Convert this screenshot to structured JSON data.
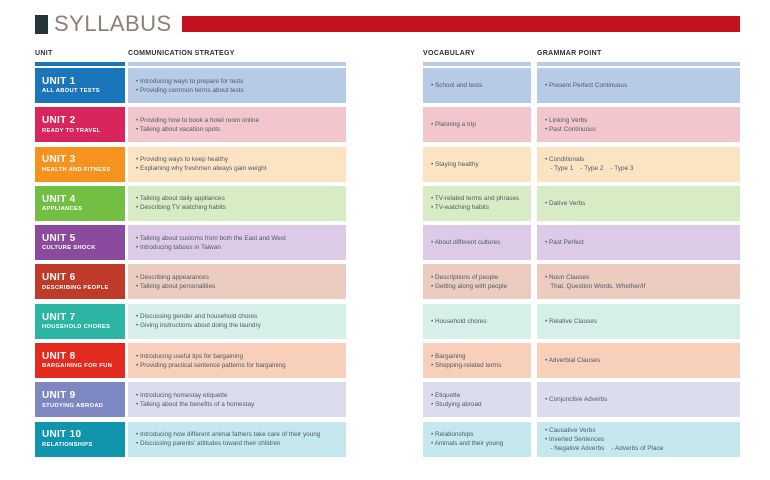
{
  "header": {
    "title": "SYLLABUS",
    "title_color": "#8c8077",
    "square_color": "#243538",
    "rule_color": "#c5121f"
  },
  "columns": {
    "unit": "UNIT",
    "comm": "COMMUNICATION STRATEGY",
    "vocab": "VOCABULARY",
    "grammar": "GRAMMAR POINT",
    "unit_underline_color": "#1b75bb",
    "underline_color": "#b9cbe5"
  },
  "units": [
    {
      "title": "UNIT 1",
      "subtitle": "ALL ABOUT TESTS",
      "colors": {
        "label": "#1b75bb",
        "row": "#b8cbe6"
      },
      "comm": [
        "• Introducing ways to prepare for tests",
        "• Providing common terms about tests"
      ],
      "vocab": [
        "• School and tests"
      ],
      "grammar": [
        "• Present Perfect Continuous"
      ]
    },
    {
      "title": "UNIT 2",
      "subtitle": "READY TO TRAVEL",
      "colors": {
        "label": "#d9255e",
        "row": "#f2c6cc"
      },
      "comm": [
        "• Providing how to book a hotel room online",
        "• Talking about vacation spots"
      ],
      "vocab": [
        "• Planning a trip"
      ],
      "grammar": [
        "• Linking Verbs",
        "• Past Continuous"
      ]
    },
    {
      "title": "UNIT 3",
      "subtitle": "HEALTH AND FITNESS",
      "colors": {
        "label": "#f6921e",
        "row": "#fce4c3"
      },
      "comm": [
        "• Providing ways to keep healthy",
        "• Explaining why freshmen always gain weight"
      ],
      "vocab": [
        "• Staying healthy"
      ],
      "grammar": [
        "• Conditionals",
        "   - Type 1    - Type 2    - Type 3"
      ]
    },
    {
      "title": "UNIT 4",
      "subtitle": "APPLIANCES",
      "colors": {
        "label": "#72bf44",
        "row": "#d7ecc4"
      },
      "comm": [
        "• Talking about daily appliances",
        "• Describing TV watching habits"
      ],
      "vocab": [
        "• TV-related terms and phrases",
        "• TV-watching habits"
      ],
      "grammar": [
        "• Dative Verbs"
      ]
    },
    {
      "title": "UNIT 5",
      "subtitle": "CULTURE SHOCK",
      "colors": {
        "label": "#8a4a9d",
        "row": "#dccae7"
      },
      "comm": [
        "• Talking about customs from both the East and West",
        "• Introducing taboos in Taiwan"
      ],
      "vocab": [
        "• About different cultures"
      ],
      "grammar": [
        "• Past Perfect"
      ]
    },
    {
      "title": "UNIT 6",
      "subtitle": "DESCRIBING PEOPLE",
      "colors": {
        "label": "#bf3a28",
        "row": "#ecccc0"
      },
      "comm": [
        "• Describing appearances",
        "• Talking about personalities"
      ],
      "vocab": [
        "• Descriptions of people",
        "• Getting along with people"
      ],
      "grammar": [
        "• Noun Clauses",
        "   That, Question Words, Whether/If"
      ]
    },
    {
      "title": "UNIT 7",
      "subtitle": "HOUSEHOLD CHORES",
      "colors": {
        "label": "#2cb5a3",
        "row": "#d7efe9"
      },
      "comm": [
        "• Discussing gender and household chores",
        "• Giving instructions about doing the laundry"
      ],
      "vocab": [
        "• Household chores"
      ],
      "grammar": [
        "• Relative Clauses"
      ]
    },
    {
      "title": "UNIT 8",
      "subtitle": "BARGAINING FOR FUN",
      "colors": {
        "label": "#e32b1d",
        "row": "#f8cfba"
      },
      "comm": [
        "• Introducing useful tips for bargaining",
        "• Providing practical sentence patterns for bargaining"
      ],
      "vocab": [
        "• Bargaining",
        "• Shopping-related terms"
      ],
      "grammar": [
        "• Adverbial Clauses"
      ]
    },
    {
      "title": "UNIT 9",
      "subtitle": "STUDYING ABROAD",
      "colors": {
        "label": "#7d88c3",
        "row": "#dbdded"
      },
      "comm": [
        "• Introducing homestay etiquette",
        "• Talking about the benefits of a homestay"
      ],
      "vocab": [
        "• Etiquette",
        "• Studying abroad"
      ],
      "grammar": [
        "• Conjunctive Adverbs"
      ]
    },
    {
      "title": "UNIT 10",
      "subtitle": "RELATIONSHIPS",
      "colors": {
        "label": "#1095ac",
        "row": "#c5e8ef"
      },
      "comm": [
        "• Introducing how different animal fathers take care of their young",
        "• Discussing parents' attitudes toward their children"
      ],
      "vocab": [
        "• Relationships",
        "• Animals and their young"
      ],
      "grammar": [
        "• Causative Verbs",
        "• Inverted Sentences",
        "   - Negative Adverbs    - Adverbs of Place"
      ]
    }
  ]
}
